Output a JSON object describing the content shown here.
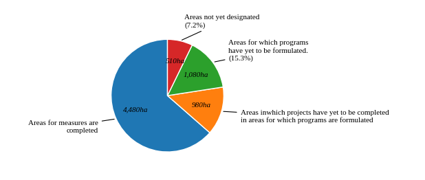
{
  "chart_data": {
    "type": "pie",
    "categories": [
      "Areas for measures are\ncompleted",
      "Areas inwhich projects have yet to be completed\nin areas for which programs are formulated",
      "Areas for which programs\nhave yet to be formulated.\n(15.3%)",
      "Areas not yet designated\n(7.2%)"
    ],
    "values": [
      4480,
      980,
      1080,
      510
    ],
    "value_labels": [
      "4,480ha",
      "980ha",
      "1,080ha",
      "510ha"
    ],
    "data_labels": true
  }
}
